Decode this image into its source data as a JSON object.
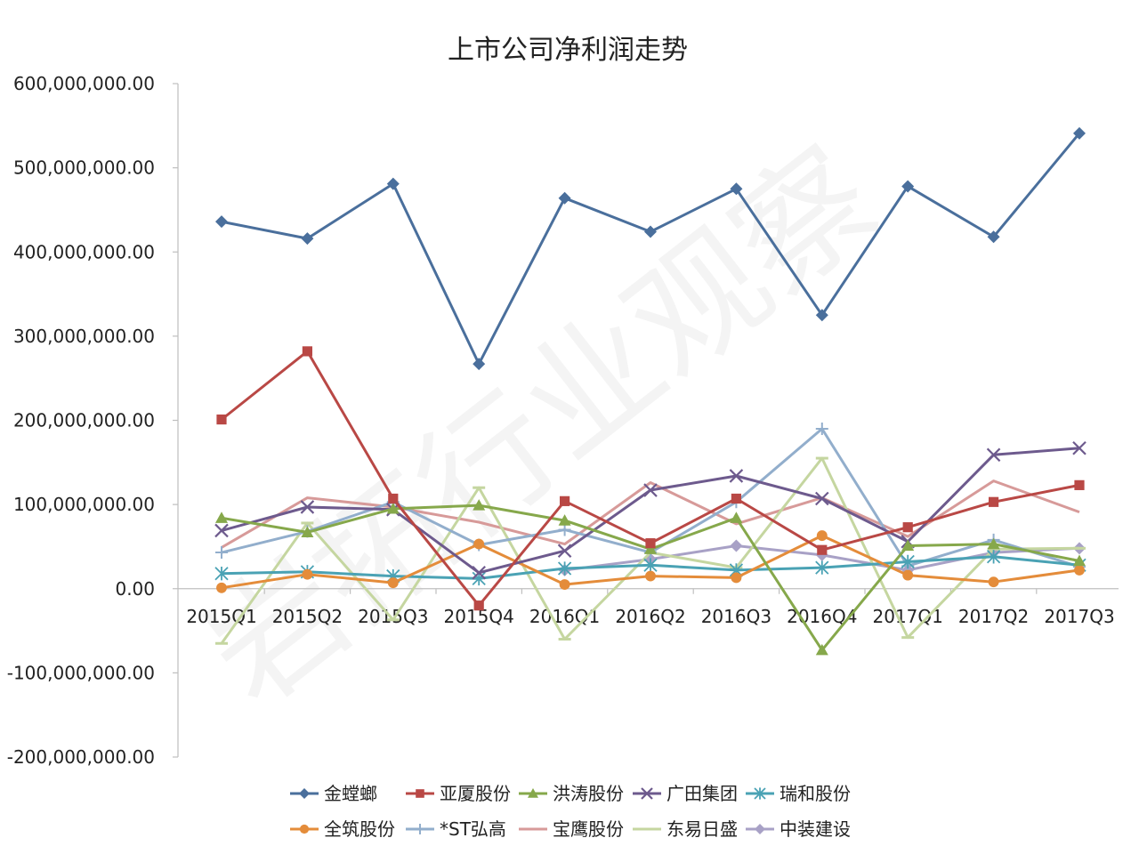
{
  "chart_data": {
    "type": "line",
    "title": "上市公司净利润走势",
    "xlabel": "",
    "ylabel": "",
    "ylim": [
      -200000000,
      600000000
    ],
    "y_ticks": [
      {
        "value": 600000000,
        "label": "600,000,000.00"
      },
      {
        "value": 500000000,
        "label": "500,000,000.00"
      },
      {
        "value": 400000000,
        "label": "400,000,000.00"
      },
      {
        "value": 300000000,
        "label": "300,000,000.00"
      },
      {
        "value": 200000000,
        "label": "200,000,000.00"
      },
      {
        "value": 100000000,
        "label": "100,000,000.00"
      },
      {
        "value": 0,
        "label": "0.00"
      },
      {
        "value": -100000000,
        "label": "-100,000,000.00"
      },
      {
        "value": -200000000,
        "label": "-200,000,000.00"
      }
    ],
    "categories": [
      "2015Q1",
      "2015Q2",
      "2015Q3",
      "2015Q4",
      "2016Q1",
      "2016Q2",
      "2016Q3",
      "2016Q4",
      "2017Q1",
      "2017Q2",
      "2017Q3"
    ],
    "grid": false,
    "legend_position": "bottom",
    "watermark": "岩拓行业观察",
    "series": [
      {
        "name": "金螳螂",
        "color": "#4a6f9c",
        "marker": "diamond",
        "values": [
          436000000,
          416000000,
          481000000,
          267000000,
          464000000,
          424000000,
          475000000,
          325000000,
          478000000,
          418000000,
          541000000
        ]
      },
      {
        "name": "亚厦股份",
        "color": "#b94845",
        "marker": "square",
        "values": [
          201000000,
          282000000,
          107000000,
          -20000000,
          104000000,
          54000000,
          107000000,
          46000000,
          73000000,
          103000000,
          123000000
        ]
      },
      {
        "name": "洪涛股份",
        "color": "#86a84b",
        "marker": "triangle",
        "values": [
          84000000,
          67000000,
          95000000,
          99000000,
          81000000,
          47000000,
          84000000,
          -73000000,
          51000000,
          53000000,
          33000000
        ]
      },
      {
        "name": "广田集团",
        "color": "#6d5a8d",
        "marker": "x",
        "values": [
          69000000,
          97000000,
          94000000,
          19000000,
          45000000,
          117000000,
          134000000,
          107000000,
          56000000,
          159000000,
          167000000
        ]
      },
      {
        "name": "瑞和股份",
        "color": "#4aa2b4",
        "marker": "asterisk",
        "values": [
          18000000,
          20000000,
          15000000,
          12000000,
          24000000,
          28000000,
          22000000,
          25000000,
          32000000,
          38000000,
          28000000
        ]
      },
      {
        "name": "全筑股份",
        "color": "#e48c3a",
        "marker": "circle",
        "values": [
          1000000,
          17000000,
          7000000,
          53000000,
          5000000,
          15000000,
          13000000,
          63000000,
          16000000,
          8000000,
          22000000
        ]
      },
      {
        "name": "*ST弘高",
        "color": "#92aecc",
        "marker": "plus",
        "values": [
          43000000,
          68000000,
          103000000,
          52000000,
          70000000,
          43000000,
          103000000,
          190000000,
          27000000,
          58000000,
          26000000
        ]
      },
      {
        "name": "宝鹰股份",
        "color": "#d79a99",
        "marker": "none",
        "values": [
          49000000,
          108000000,
          97000000,
          79000000,
          53000000,
          126000000,
          77000000,
          108000000,
          62000000,
          128000000,
          91000000
        ]
      },
      {
        "name": "东易日盛",
        "color": "#c5d6a0",
        "marker": "dash",
        "values": [
          -65000000,
          78000000,
          -37000000,
          120000000,
          -60000000,
          43000000,
          25000000,
          155000000,
          -58000000,
          47000000,
          48000000
        ]
      },
      {
        "name": "中装建设",
        "color": "#a8a1c6",
        "marker": "diamond",
        "values": [
          null,
          null,
          null,
          null,
          22000000,
          35000000,
          51000000,
          40000000,
          22000000,
          43000000,
          48000000
        ]
      }
    ]
  }
}
